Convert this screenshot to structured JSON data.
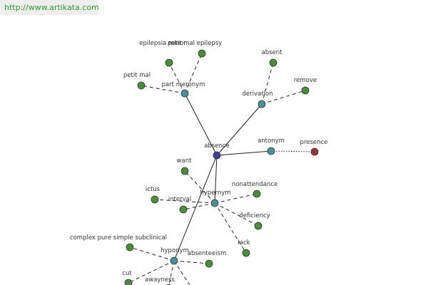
{
  "header": {
    "url": "http://www.artikata.com"
  },
  "nodes": [
    {
      "label": "absence"
    },
    {
      "label": "part meronym"
    },
    {
      "label": "epilepsia minor"
    },
    {
      "label": "petit mal epilepsy"
    },
    {
      "label": "petit mal"
    },
    {
      "label": "derivation"
    },
    {
      "label": "absent"
    },
    {
      "label": "remove"
    },
    {
      "label": "antonym"
    },
    {
      "label": "presence"
    },
    {
      "label": "hypernym"
    },
    {
      "label": "want"
    },
    {
      "label": "nonattendance"
    },
    {
      "label": "ictus"
    },
    {
      "label": "interval"
    },
    {
      "label": "deficiency"
    },
    {
      "label": "lack"
    },
    {
      "label": "hyponym"
    },
    {
      "label": "complex pure simple subclinical"
    },
    {
      "label": "absenteeism"
    },
    {
      "label": "cut"
    },
    {
      "label": "awayness"
    }
  ]
}
